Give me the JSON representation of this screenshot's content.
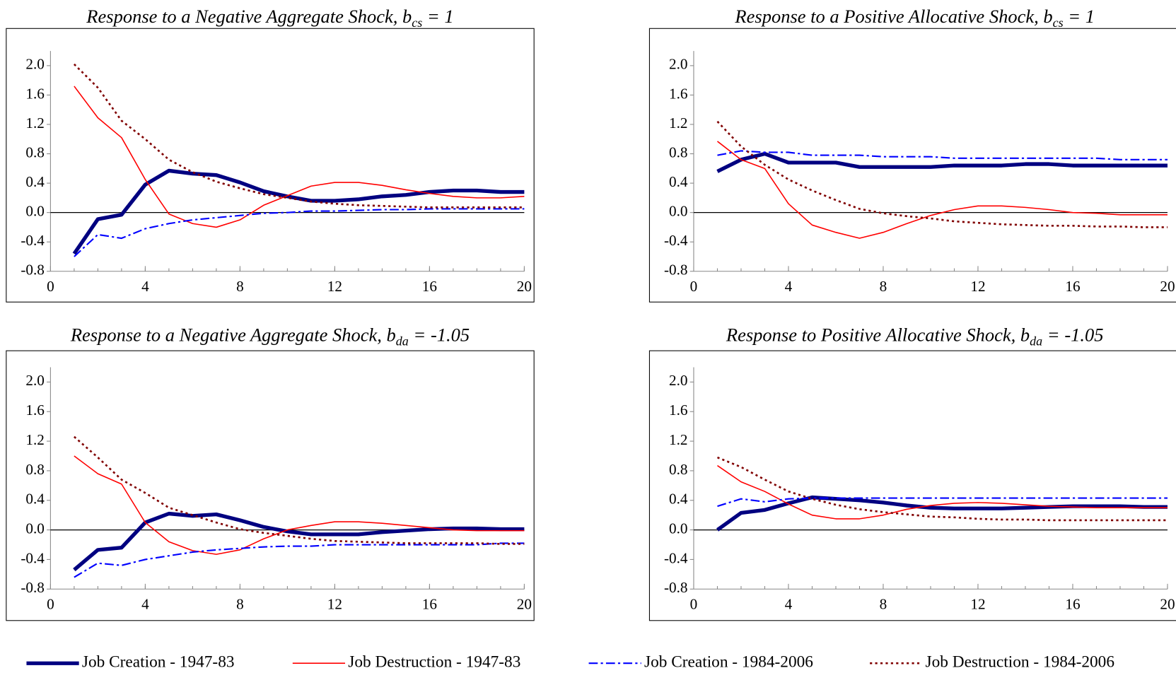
{
  "chart_data": [
    {
      "type": "line",
      "title": "Response to a Negative Aggregate Shock, b",
      "title_sub": "cs",
      "title_tail": " = 1",
      "x": [
        1,
        2,
        3,
        4,
        5,
        6,
        7,
        8,
        9,
        10,
        11,
        12,
        13,
        14,
        15,
        16,
        17,
        18,
        19,
        20
      ],
      "xlim": [
        0,
        20
      ],
      "xticks": [
        0,
        4,
        8,
        12,
        16,
        20
      ],
      "ylim": [
        -0.8,
        2.2
      ],
      "yticks": [
        -0.8,
        -0.4,
        {
          "value": 0,
          "label": "0.0"
        },
        0.4,
        0.8,
        1.2,
        1.6,
        {
          "value": 2,
          "label": "2.0"
        }
      ],
      "series": [
        {
          "name": "Job Creation - 1947-83",
          "color": "#000080",
          "width": 5,
          "dash": "solid",
          "values": [
            -0.56,
            -0.09,
            -0.03,
            0.38,
            0.57,
            0.53,
            0.51,
            0.41,
            0.29,
            0.22,
            0.16,
            0.16,
            0.18,
            0.22,
            0.24,
            0.28,
            0.3,
            0.3,
            0.28,
            0.28
          ]
        },
        {
          "name": "Job Destruction - 1947-83",
          "color": "#ff0000",
          "width": 1.5,
          "dash": "solid",
          "values": [
            1.72,
            1.29,
            1.02,
            0.45,
            -0.02,
            -0.15,
            -0.2,
            -0.1,
            0.1,
            0.23,
            0.36,
            0.41,
            0.41,
            0.37,
            0.31,
            0.26,
            0.22,
            0.2,
            0.2,
            0.22
          ]
        },
        {
          "name": "Job Creation - 1984-2006",
          "color": "#0000ff",
          "width": 2,
          "dash": "dashdot",
          "values": [
            -0.6,
            -0.3,
            -0.35,
            -0.22,
            -0.15,
            -0.1,
            -0.07,
            -0.04,
            -0.01,
            0,
            0.02,
            0.02,
            0.03,
            0.04,
            0.04,
            0.05,
            0.05,
            0.05,
            0.05,
            0.05
          ]
        },
        {
          "name": "Job Destruction - 1984-2006",
          "color": "#800000",
          "width": 2.5,
          "dash": "dot",
          "values": [
            2.02,
            1.7,
            1.25,
            1.0,
            0.72,
            0.55,
            0.42,
            0.33,
            0.25,
            0.2,
            0.15,
            0.12,
            0.1,
            0.09,
            0.08,
            0.07,
            0.07,
            0.07,
            0.07,
            0.07
          ]
        }
      ]
    },
    {
      "type": "line",
      "title": "Response to a Positive Allocative Shock, b",
      "title_sub": "cs",
      "title_tail": " = 1",
      "x": [
        1,
        2,
        3,
        4,
        5,
        6,
        7,
        8,
        9,
        10,
        11,
        12,
        13,
        14,
        15,
        16,
        17,
        18,
        19,
        20
      ],
      "xlim": [
        0,
        20
      ],
      "xticks": [
        0,
        4,
        8,
        12,
        16,
        20
      ],
      "ylim": [
        -0.8,
        2.2
      ],
      "yticks": [
        -0.8,
        -0.4,
        {
          "value": 0,
          "label": "0.0"
        },
        0.4,
        0.8,
        1.2,
        1.6,
        {
          "value": 2,
          "label": "2.0"
        }
      ],
      "series": [
        {
          "values": [
            0.56,
            0.72,
            0.8,
            0.68,
            0.68,
            0.68,
            0.62,
            0.62,
            0.62,
            0.62,
            0.64,
            0.64,
            0.64,
            0.66,
            0.66,
            0.64,
            0.64,
            0.64,
            0.64,
            0.64
          ]
        },
        {
          "values": [
            0.97,
            0.72,
            0.6,
            0.12,
            -0.17,
            -0.27,
            -0.35,
            -0.27,
            -0.15,
            -0.04,
            0.04,
            0.09,
            0.09,
            0.07,
            0.04,
            0,
            -0.01,
            -0.03,
            -0.03,
            -0.03
          ]
        },
        {
          "values": [
            0.78,
            0.84,
            0.82,
            0.82,
            0.78,
            0.78,
            0.78,
            0.76,
            0.76,
            0.76,
            0.74,
            0.74,
            0.74,
            0.74,
            0.74,
            0.74,
            0.74,
            0.72,
            0.72,
            0.72
          ]
        },
        {
          "values": [
            1.24,
            0.9,
            0.65,
            0.45,
            0.3,
            0.17,
            0.05,
            -0.01,
            -0.05,
            -0.08,
            -0.12,
            -0.14,
            -0.16,
            -0.17,
            -0.18,
            -0.18,
            -0.19,
            -0.19,
            -0.2,
            -0.2
          ]
        }
      ]
    },
    {
      "type": "line",
      "title": "Response to a Negative Aggregate Shock, b",
      "title_sub": "da",
      "title_tail": " = -1.05",
      "x": [
        1,
        2,
        3,
        4,
        5,
        6,
        7,
        8,
        9,
        10,
        11,
        12,
        13,
        14,
        15,
        16,
        17,
        18,
        19,
        20
      ],
      "xlim": [
        0,
        20
      ],
      "xticks": [
        0,
        4,
        8,
        12,
        16,
        20
      ],
      "ylim": [
        -0.8,
        2.2
      ],
      "yticks": [
        -0.8,
        -0.4,
        {
          "value": 0,
          "label": "0.0"
        },
        0.4,
        0.8,
        1.2,
        1.6,
        {
          "value": 2,
          "label": "2.0"
        }
      ],
      "series": [
        {
          "values": [
            -0.54,
            -0.27,
            -0.24,
            0.1,
            0.22,
            0.19,
            0.21,
            0.13,
            0.04,
            -0.02,
            -0.06,
            -0.06,
            -0.06,
            -0.03,
            -0.01,
            0.01,
            0.02,
            0.02,
            0.01,
            0.01
          ]
        },
        {
          "values": [
            1.0,
            0.76,
            0.62,
            0.1,
            -0.16,
            -0.28,
            -0.33,
            -0.27,
            -0.12,
            0,
            0.06,
            0.11,
            0.11,
            0.09,
            0.06,
            0.03,
            0,
            -0.01,
            -0.01,
            -0.01
          ]
        },
        {
          "values": [
            -0.64,
            -0.45,
            -0.48,
            -0.4,
            -0.35,
            -0.3,
            -0.27,
            -0.25,
            -0.23,
            -0.22,
            -0.22,
            -0.2,
            -0.2,
            -0.2,
            -0.2,
            -0.2,
            -0.2,
            -0.2,
            -0.18,
            -0.18
          ]
        },
        {
          "values": [
            1.26,
            0.98,
            0.68,
            0.5,
            0.3,
            0.2,
            0.1,
            0.01,
            -0.04,
            -0.08,
            -0.12,
            -0.15,
            -0.16,
            -0.17,
            -0.18,
            -0.18,
            -0.18,
            -0.18,
            -0.19,
            -0.19
          ]
        }
      ]
    },
    {
      "type": "line",
      "title": "Response to Positive Allocative Shock, b",
      "title_sub": "da",
      "title_tail": " = -1.05",
      "x": [
        1,
        2,
        3,
        4,
        5,
        6,
        7,
        8,
        9,
        10,
        11,
        12,
        13,
        14,
        15,
        16,
        17,
        18,
        19,
        20
      ],
      "xlim": [
        0,
        20
      ],
      "xticks": [
        0,
        4,
        8,
        12,
        16,
        20
      ],
      "ylim": [
        -0.8,
        2.2
      ],
      "yticks": [
        -0.8,
        -0.4,
        {
          "value": 0,
          "label": "0.0"
        },
        0.4,
        0.8,
        1.2,
        1.6,
        {
          "value": 2,
          "label": "2.0"
        }
      ],
      "series": [
        {
          "values": [
            0,
            0.23,
            0.27,
            0.36,
            0.44,
            0.42,
            0.4,
            0.37,
            0.33,
            0.3,
            0.29,
            0.29,
            0.29,
            0.3,
            0.31,
            0.32,
            0.32,
            0.32,
            0.31,
            0.31
          ]
        },
        {
          "values": [
            0.87,
            0.65,
            0.52,
            0.35,
            0.2,
            0.15,
            0.15,
            0.2,
            0.28,
            0.33,
            0.36,
            0.37,
            0.36,
            0.34,
            0.32,
            0.31,
            0.3,
            0.3,
            0.3,
            0.3
          ]
        },
        {
          "values": [
            0.32,
            0.42,
            0.38,
            0.42,
            0.43,
            0.43,
            0.43,
            0.43,
            0.43,
            0.43,
            0.43,
            0.43,
            0.43,
            0.43,
            0.43,
            0.43,
            0.43,
            0.43,
            0.43,
            0.43
          ]
        },
        {
          "values": [
            0.98,
            0.85,
            0.68,
            0.52,
            0.42,
            0.34,
            0.28,
            0.24,
            0.21,
            0.18,
            0.17,
            0.15,
            0.14,
            0.14,
            0.13,
            0.13,
            0.13,
            0.13,
            0.13,
            0.13
          ]
        }
      ]
    }
  ]
}
